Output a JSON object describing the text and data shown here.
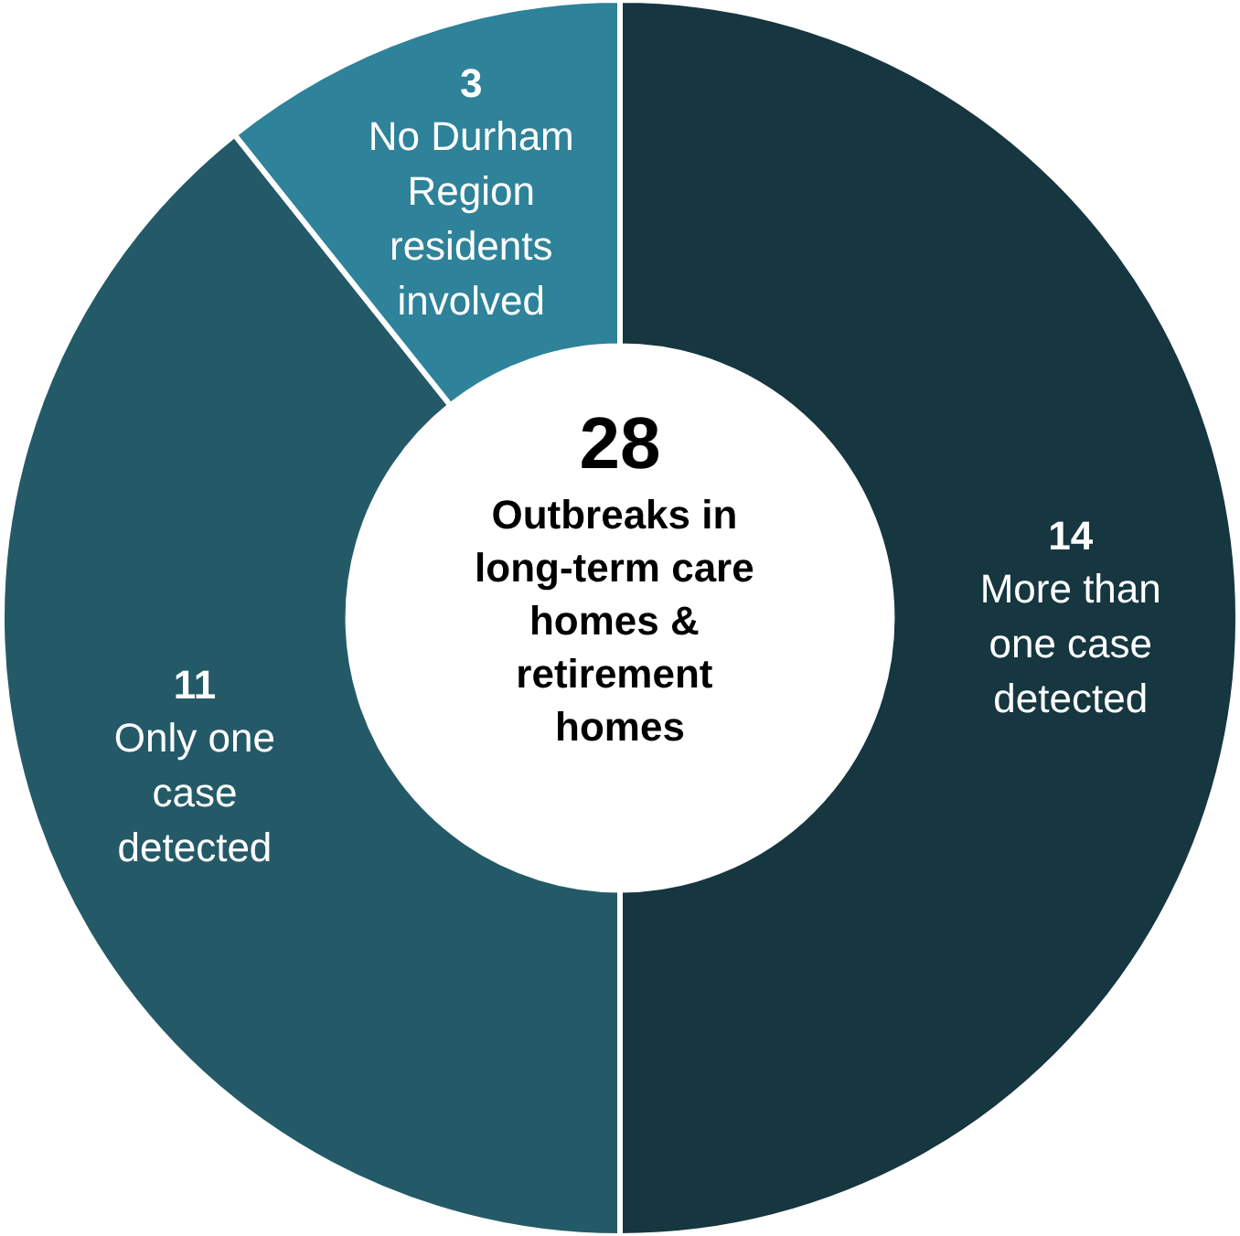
{
  "chart_data": {
    "type": "donut",
    "title": "28",
    "subtitle": "Outbreaks in long-term care homes & retirement homes",
    "categories": [
      "More than one case detected",
      "Only one case detected",
      "No Durham Region residents involved"
    ],
    "values": [
      14,
      11,
      3
    ],
    "colors": [
      "#163640",
      "#245a68",
      "#2e8299"
    ],
    "data_labels": true,
    "legend": false
  }
}
